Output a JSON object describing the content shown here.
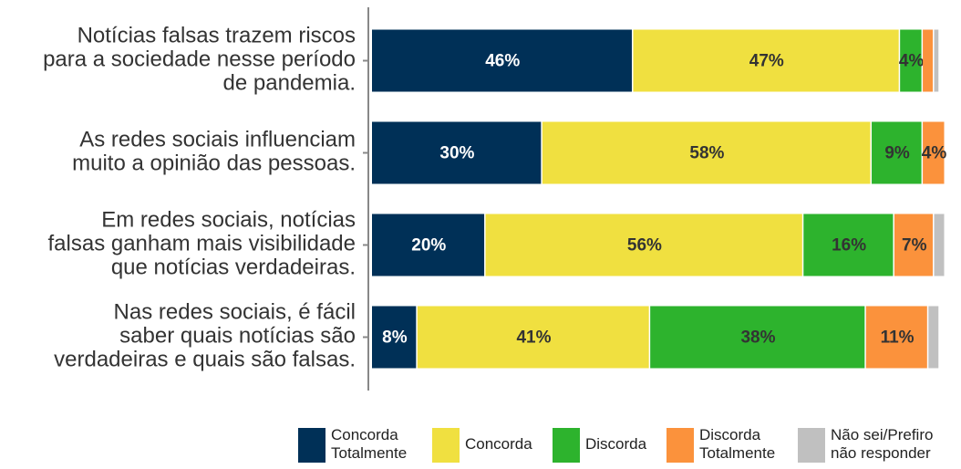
{
  "chart_data": {
    "type": "stacked_barh",
    "categories": [
      [
        "Notícias falsas trazem riscos",
        "para a sociedade nesse período",
        "de pandemia."
      ],
      [
        "As redes sociais influenciam",
        "muito a opinião das pessoas."
      ],
      [
        "Em redes sociais, notícias",
        "falsas ganham mais visibilidade",
        "que notícias verdadeiras."
      ],
      [
        "Nas redes sociais, é fácil",
        "saber quais notícias são",
        "verdadeiras e quais são falsas."
      ]
    ],
    "series": [
      {
        "name": [
          "Concorda",
          "Totalmente"
        ],
        "color": "#003057",
        "label_color": "#ffffff",
        "values": [
          46,
          30,
          20,
          8
        ],
        "value_labels": [
          "46%",
          "30%",
          "20%",
          "8%"
        ]
      },
      {
        "name": [
          "Concorda"
        ],
        "color": "#f0e040",
        "label_color": "#333333",
        "values": [
          47,
          58,
          56,
          41
        ],
        "value_labels": [
          "47%",
          "58%",
          "56%",
          "41%"
        ]
      },
      {
        "name": [
          "Discorda"
        ],
        "color": "#2db32d",
        "label_color": "#333333",
        "values": [
          4,
          9,
          16,
          38
        ],
        "value_labels": [
          "4%",
          "9%",
          "16%",
          "38%"
        ]
      },
      {
        "name": [
          "Discorda",
          "Totalmente"
        ],
        "color": "#fb923c",
        "label_color": "#333333",
        "values": [
          2,
          4,
          7,
          11
        ],
        "value_labels": [
          null,
          "4%",
          "7%",
          "11%"
        ]
      },
      {
        "name": [
          "Não sei/Prefiro",
          "não responder"
        ],
        "color": "#c0c0c0",
        "label_color": "#333333",
        "values": [
          1,
          0,
          2,
          2
        ],
        "value_labels": [
          null,
          null,
          null,
          null
        ]
      }
    ],
    "xlim": [
      0,
      101
    ],
    "legend": "bottom"
  }
}
